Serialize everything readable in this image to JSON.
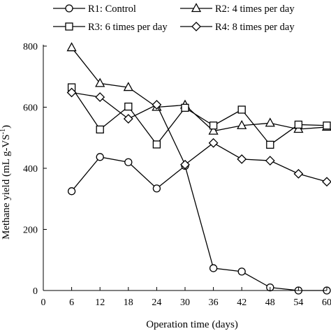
{
  "chart_data": {
    "type": "line",
    "xlabel": "Operation time (days)",
    "ylabel": "Methane yield (mL g-VS",
    "ylabel_sup": "-1",
    "ylabel_close": ")",
    "xlim": [
      0,
      60
    ],
    "ylim": [
      0,
      800
    ],
    "xticks": [
      0,
      6,
      12,
      18,
      24,
      30,
      36,
      42,
      48,
      54,
      60
    ],
    "yticks": [
      0,
      200,
      400,
      600,
      800
    ],
    "x": [
      6,
      12,
      18,
      24,
      30,
      36,
      42,
      48,
      54,
      60
    ],
    "grid": false,
    "legend_position": "top",
    "series": [
      {
        "name": "R1: Control",
        "marker": "circle",
        "values": [
          325,
          437,
          420,
          334,
          408,
          73,
          62,
          10,
          0,
          0
        ]
      },
      {
        "name": "R2: 4 times per day",
        "marker": "triangle",
        "values": [
          795,
          678,
          665,
          600,
          607,
          522,
          540,
          548,
          528,
          535
        ]
      },
      {
        "name": "R3: 6 times per day",
        "marker": "square",
        "values": [
          665,
          527,
          602,
          478,
          598,
          540,
          592,
          477,
          543,
          540
        ]
      },
      {
        "name": "R4: 8 times per day",
        "marker": "diamond",
        "values": [
          648,
          633,
          562,
          608,
          412,
          483,
          430,
          425,
          382,
          356
        ]
      }
    ]
  }
}
